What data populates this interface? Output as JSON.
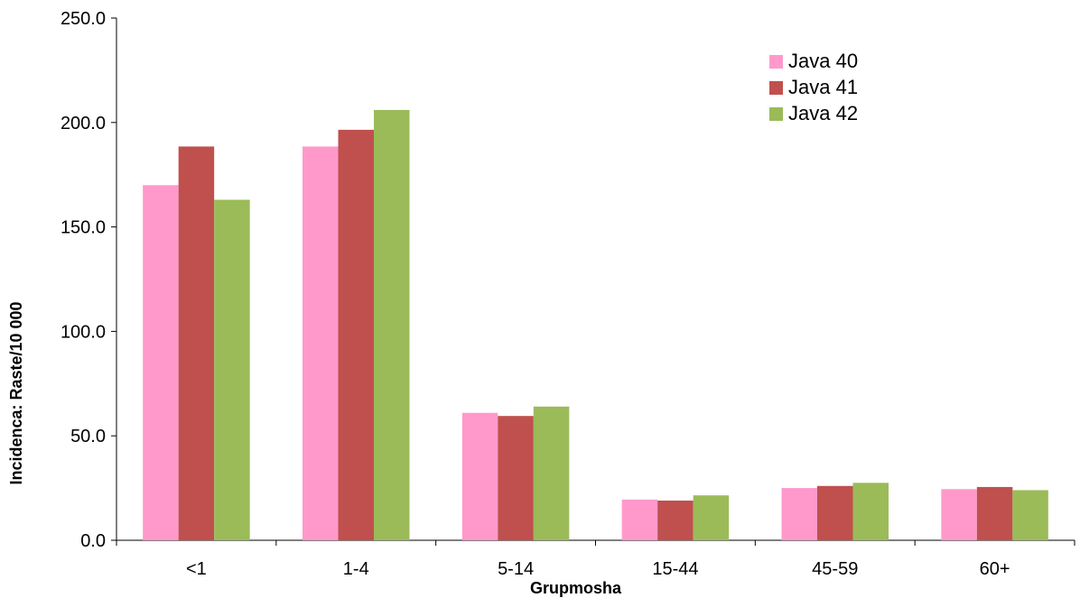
{
  "chart_data": {
    "type": "bar",
    "title": "",
    "xlabel": "Grupmosha",
    "ylabel": "Incidenca: Raste/10 000",
    "categories": [
      "<1",
      "1-4",
      "5-14",
      "15-44",
      "45-59",
      "60+"
    ],
    "series": [
      {
        "name": "Java 40",
        "color": "#ff99cc",
        "values": [
          170.0,
          188.5,
          61.0,
          19.5,
          25.0,
          24.5
        ]
      },
      {
        "name": "Java 41",
        "color": "#c0504d",
        "values": [
          188.5,
          196.5,
          59.5,
          19.0,
          26.0,
          25.5
        ]
      },
      {
        "name": "Java 42",
        "color": "#9bbb59",
        "values": [
          163.0,
          206.0,
          64.0,
          21.5,
          27.5,
          24.0
        ]
      }
    ],
    "ylim": [
      0,
      250
    ],
    "yticks": [
      "0.0",
      "50.0",
      "100.0",
      "150.0",
      "200.0",
      "250.0"
    ],
    "grid": false,
    "legend_position": "top-right"
  }
}
